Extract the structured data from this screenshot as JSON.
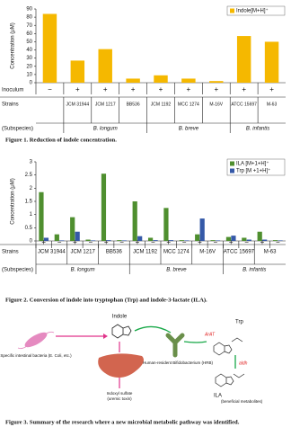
{
  "chart_data": [
    {
      "type": "bar",
      "y_label": "Concentration (μM)",
      "categories": [
        "−",
        "+",
        "+",
        "+",
        "+",
        "+",
        "+",
        "+",
        "+"
      ],
      "series": [
        {
          "name": "Indole[M+H]⁺",
          "color": "#f5b800",
          "values": [
            84,
            27,
            41,
            5,
            9,
            5,
            2,
            57,
            50
          ]
        }
      ],
      "ylim": [
        0,
        90
      ],
      "yticks": [
        0,
        10,
        20,
        30,
        40,
        50,
        60,
        70,
        80,
        90
      ],
      "legend": "upper-right",
      "row_labels": [
        "Inoculum",
        "Strains",
        "(Subspecies)"
      ],
      "strains": [
        "JCM 31944",
        "JCM 1217",
        "BB536",
        "JCM 1192",
        "MCC 1274",
        "M-16V",
        "ATCC 15697",
        "M-63"
      ],
      "subspecies": [
        "B. longum",
        "B. breve",
        "B. infantis"
      ]
    },
    {
      "type": "grouped-bar",
      "y_label": "Concentration (μM)",
      "categories": [
        "+",
        "−",
        "+",
        "−",
        "+",
        "−",
        "+",
        "−",
        "+",
        "−",
        "+",
        "−",
        "+",
        "−",
        "+",
        "−"
      ],
      "series": [
        {
          "name": "ILA [M+1+H]⁺",
          "color": "#4f8f2f",
          "values": [
            1.85,
            0.25,
            0.9,
            0.05,
            2.55,
            0.03,
            1.5,
            0.12,
            1.25,
            0.03,
            0.25,
            0.03,
            0.15,
            0.12,
            0.35,
            0.03
          ]
        },
        {
          "name": "Trp [M +1+H]⁺",
          "color": "#3559a8",
          "values": [
            0.12,
            0.02,
            0.35,
            0.02,
            0.03,
            0.02,
            0.18,
            0.03,
            0.03,
            0.02,
            0.85,
            0.02,
            0.2,
            0.05,
            0.05,
            0.02
          ]
        }
      ],
      "ylim": [
        0,
        3
      ],
      "yticks": [
        0,
        0.5,
        1,
        1.5,
        2,
        2.5,
        3
      ],
      "legend": "upper-right",
      "row_labels": [
        "Strains",
        "(Subspecies)"
      ],
      "strains": [
        "JCM 31944",
        "JCM 1217",
        "BB536",
        "JCM 1192",
        "MCC 1274",
        "M-16V",
        "ATCC 15697",
        "M-63"
      ],
      "subspecies": [
        "B. longum",
        "B. breve",
        "B. infantis"
      ]
    }
  ],
  "captions": [
    "Figure 1. Reduction of indole concentration.",
    "Figure 2. Conversion of indole into tryptophan (Trp) and indole-3-lactate (ILA).",
    "Figure 3. Summary of the research where a new microbial metabolic pathway was identified."
  ],
  "diagram": {
    "bacteria": "Specific intestinal bacteria (E. Coli, etc.)",
    "indole": "Indole",
    "hrb": "Human-resident Bifidobacterium (HRB)",
    "trp": "Trp",
    "enzyme1": "ArAT",
    "enzyme2": "aldh",
    "indoxyl": "Indoxyl sulfate",
    "indoxyl_note": "(uremic toxin)",
    "ila": "ILA",
    "ila_note": "(beneficial metabolites)"
  }
}
